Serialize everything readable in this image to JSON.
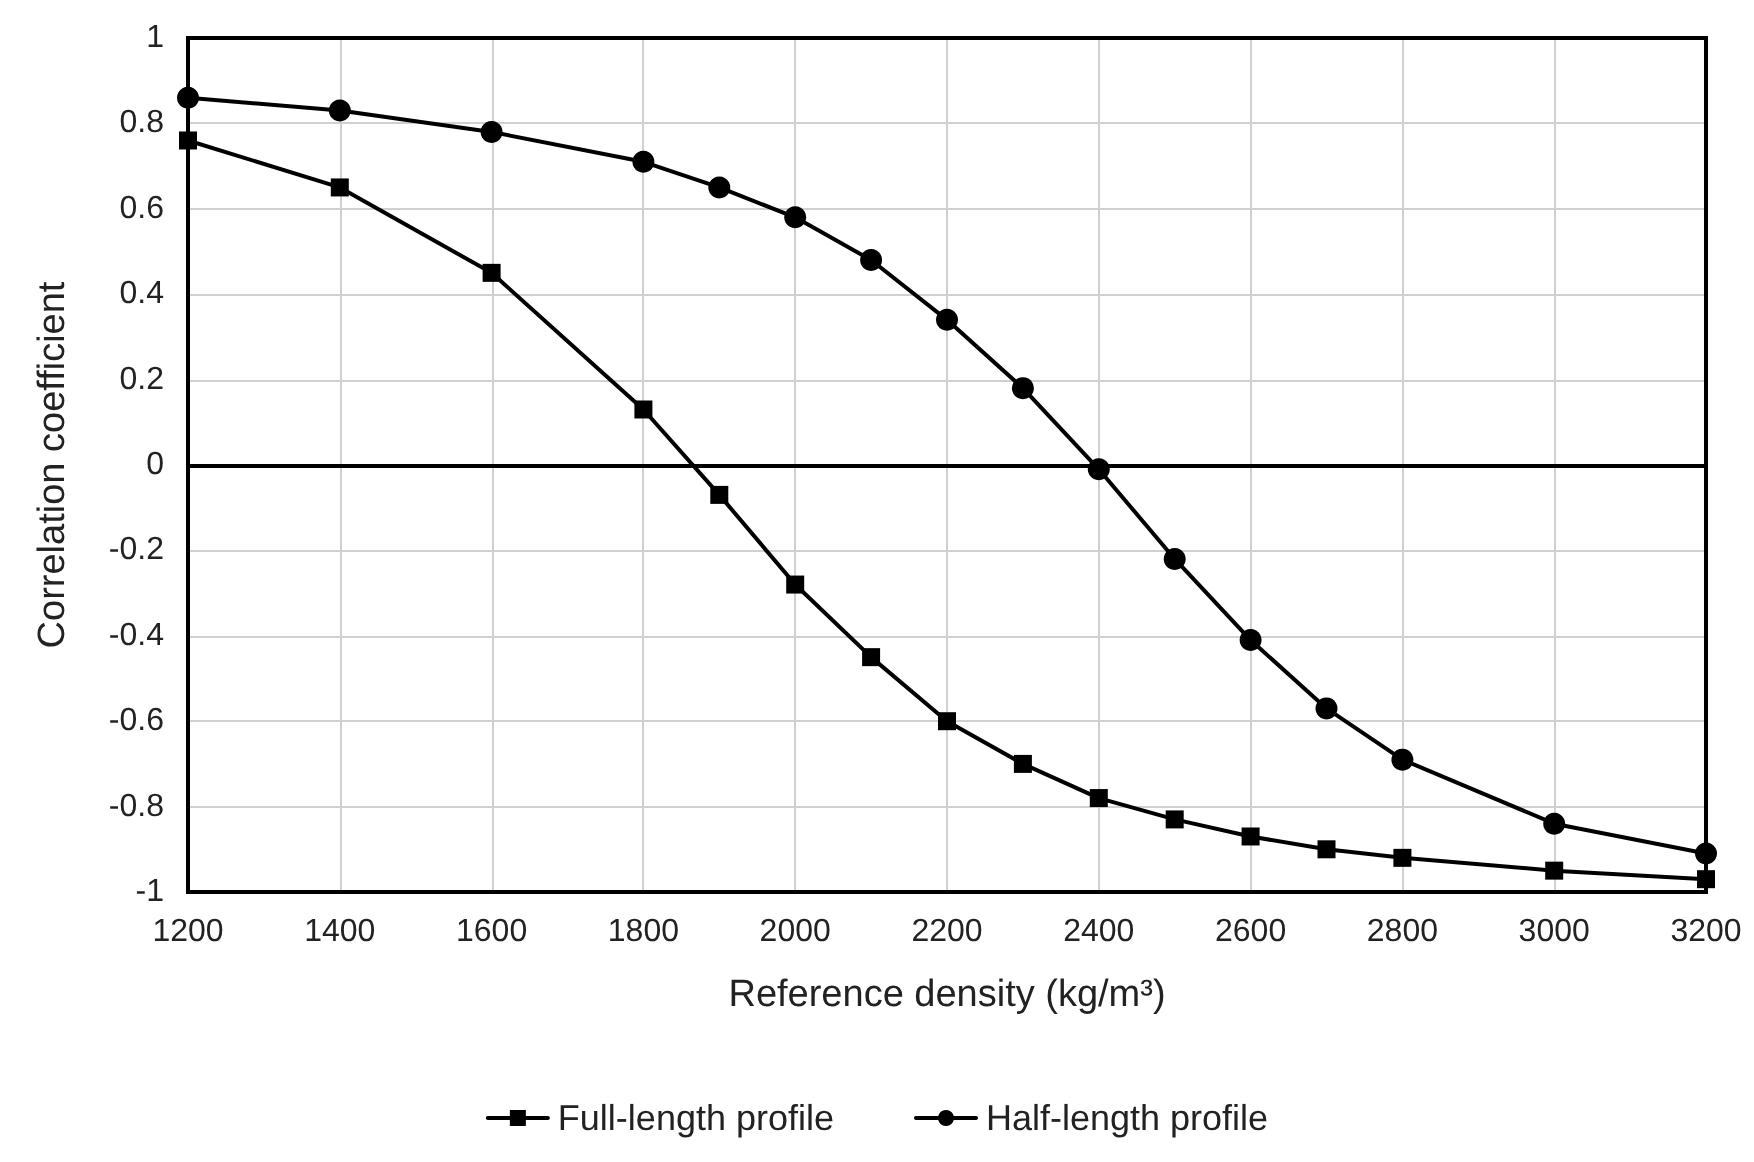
{
  "chart_data": {
    "type": "line",
    "xlabel": "Reference density (kg/m³)",
    "ylabel": "Correlation coefficient",
    "x": [
      1200,
      1400,
      1600,
      1800,
      1900,
      2000,
      2100,
      2200,
      2300,
      2400,
      2500,
      2600,
      2700,
      2800,
      3000,
      3200
    ],
    "series": [
      {
        "name": "Full-length profile",
        "color": "#000000",
        "marker": "square",
        "values": [
          0.76,
          0.65,
          0.45,
          0.13,
          -0.07,
          -0.28,
          -0.45,
          -0.6,
          -0.7,
          -0.78,
          -0.83,
          -0.87,
          -0.9,
          -0.92,
          -0.95,
          -0.97
        ]
      },
      {
        "name": "Half-length profile",
        "color": "#000000",
        "marker": "circle",
        "values": [
          0.86,
          0.83,
          0.78,
          0.71,
          0.65,
          0.58,
          0.48,
          0.34,
          0.18,
          -0.01,
          -0.22,
          -0.41,
          -0.57,
          -0.69,
          -0.84,
          -0.91
        ]
      }
    ],
    "xlim": [
      1200,
      3200
    ],
    "xticks": [
      1200,
      1400,
      1600,
      1800,
      2000,
      2200,
      2400,
      2600,
      2800,
      3000,
      3200
    ],
    "ylim": [
      -1,
      1
    ],
    "yticks": [
      -1,
      -0.8,
      -0.6,
      -0.4,
      -0.2,
      0,
      0.2,
      0.4,
      0.6,
      0.8,
      1
    ],
    "ref_lines": [
      {
        "axis": "y",
        "value": 0,
        "color": "#000000"
      }
    ],
    "grid": true,
    "legend": "bottom",
    "line_style": "solid"
  }
}
